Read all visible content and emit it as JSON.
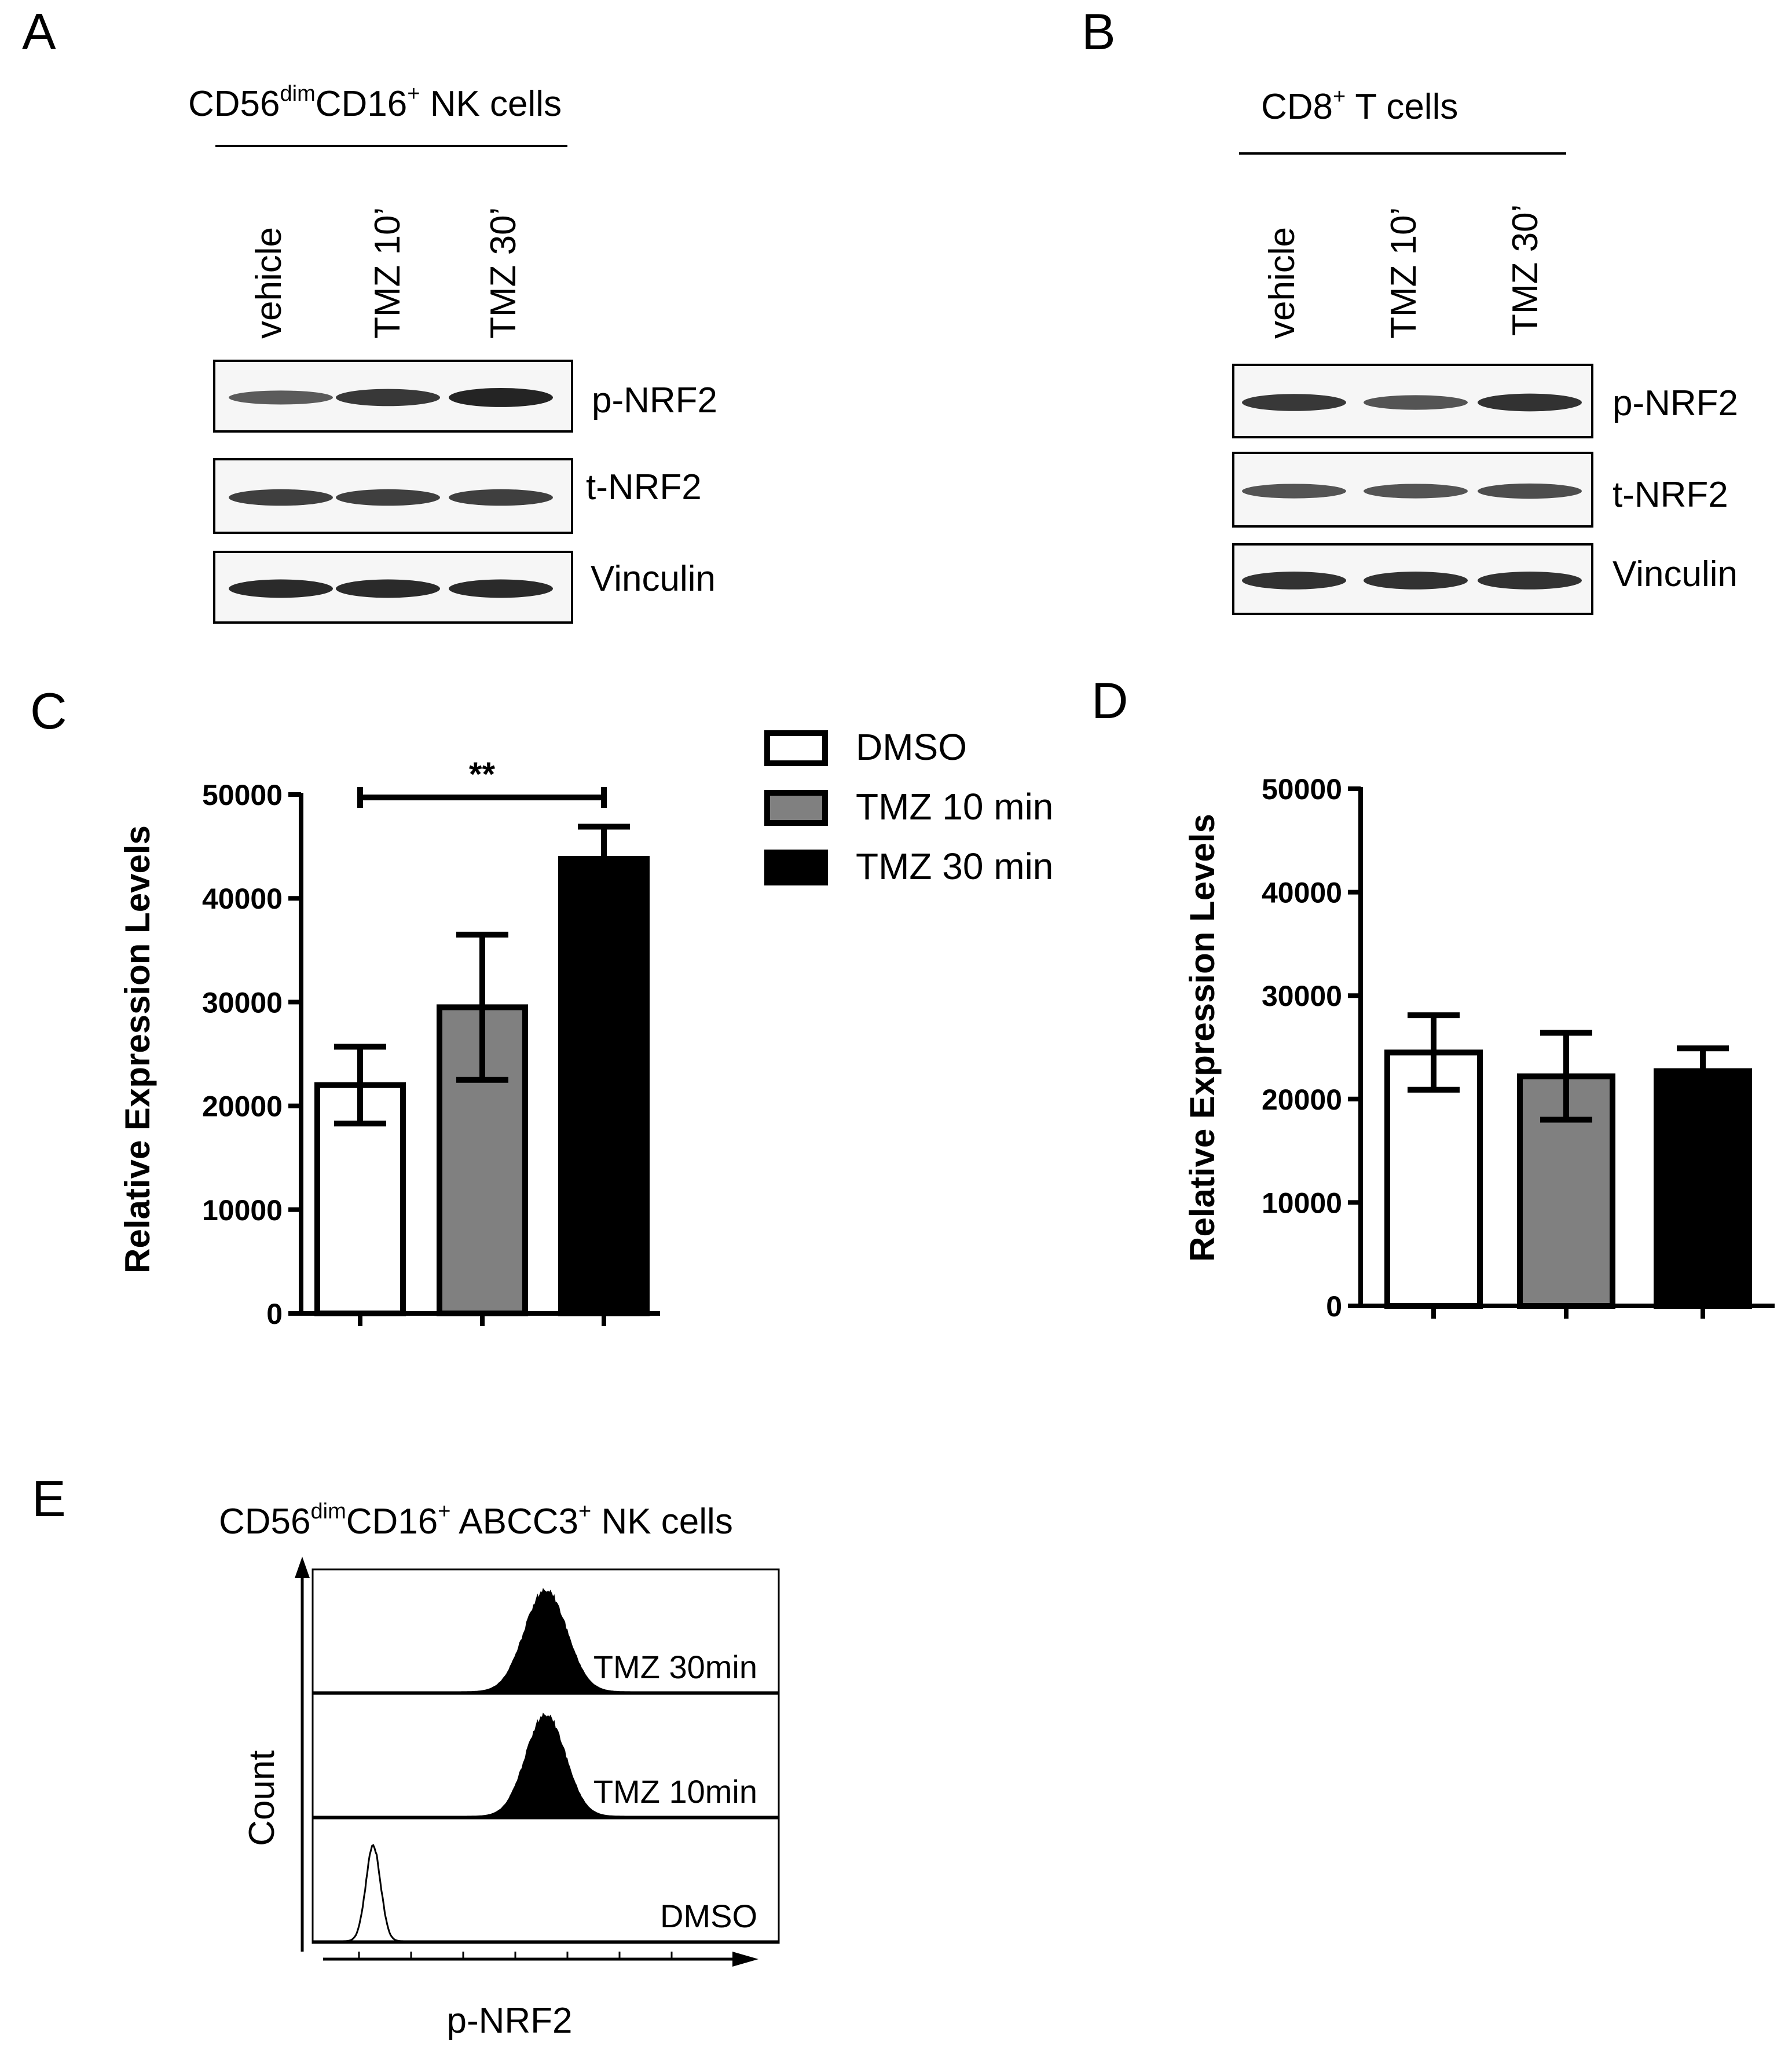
{
  "panels": {
    "A": {
      "letter": "A",
      "title": {
        "base1": "CD56",
        "sup1": "dim",
        "base2": "CD16",
        "sup2": "+",
        "base3": " NK cells"
      },
      "lanes": [
        "vehicle",
        "TMZ 10’",
        "TMZ 30’"
      ],
      "bands": [
        "p-NRF2",
        "t-NRF2",
        "Vinculin"
      ],
      "band_intensity": {
        "p-NRF2": [
          0.55,
          0.8,
          0.95
        ],
        "t-NRF2": [
          0.75,
          0.75,
          0.75
        ],
        "Vinculin": [
          0.9,
          0.9,
          0.9
        ]
      }
    },
    "B": {
      "letter": "B",
      "title": {
        "base1": "CD8",
        "sup1": "+",
        "base2": " T cells"
      },
      "lanes": [
        "vehicle",
        "TMZ 10’",
        "TMZ 30’"
      ],
      "bands": [
        "p-NRF2",
        "t-NRF2",
        "Vinculin"
      ],
      "band_intensity": {
        "p-NRF2": [
          0.8,
          0.6,
          0.85
        ],
        "t-NRF2": [
          0.6,
          0.6,
          0.65
        ],
        "Vinculin": [
          0.85,
          0.85,
          0.85
        ]
      }
    },
    "C": {
      "letter": "C"
    },
    "D": {
      "letter": "D"
    },
    "E": {
      "letter": "E",
      "title": {
        "base1": "CD56",
        "sup1": "dim",
        "base2": "CD16",
        "sup2": "+",
        "base3": " ABCC3",
        "sup3": "+",
        "base4": " NK cells"
      },
      "y_label": "Count",
      "x_label": "p-NRF2",
      "histograms": [
        {
          "label": "TMZ 30min",
          "filled": true,
          "peak": 0.5
        },
        {
          "label": "TMZ 10min",
          "filled": true,
          "peak": 0.5
        },
        {
          "label": "DMSO",
          "filled": false,
          "peak": 0.13
        }
      ]
    }
  },
  "legend": [
    {
      "label": "DMSO",
      "color": "#ffffff"
    },
    {
      "label": "TMZ 10 min",
      "color": "#808080"
    },
    {
      "label": "TMZ 30 min",
      "color": "#000000"
    }
  ],
  "chart_data": [
    {
      "panel": "C",
      "type": "bar",
      "categories": [
        "DMSO",
        "TMZ 10 min",
        "TMZ 30 min"
      ],
      "values": [
        22000,
        29500,
        43800
      ],
      "errors": [
        3700,
        7000,
        3100
      ],
      "colors": [
        "#ffffff",
        "#808080",
        "#000000"
      ],
      "ylabel": "Relative Expression Levels",
      "ylim": [
        0,
        50000
      ],
      "yticks": [
        "0",
        "10000",
        "20000",
        "30000",
        "40000",
        "50000"
      ],
      "significance": {
        "label": "**",
        "from": 0,
        "to": 2
      }
    },
    {
      "panel": "D",
      "type": "bar",
      "categories": [
        "DMSO",
        "TMZ 10 min",
        "TMZ 30 min"
      ],
      "values": [
        24500,
        22200,
        22700
      ],
      "errors": [
        3600,
        4200,
        2200
      ],
      "colors": [
        "#ffffff",
        "#808080",
        "#000000"
      ],
      "ylabel": "Relative Expression Levels",
      "ylim": [
        0,
        50000
      ],
      "yticks": [
        "0",
        "10000",
        "20000",
        "30000",
        "40000",
        "50000"
      ]
    }
  ]
}
